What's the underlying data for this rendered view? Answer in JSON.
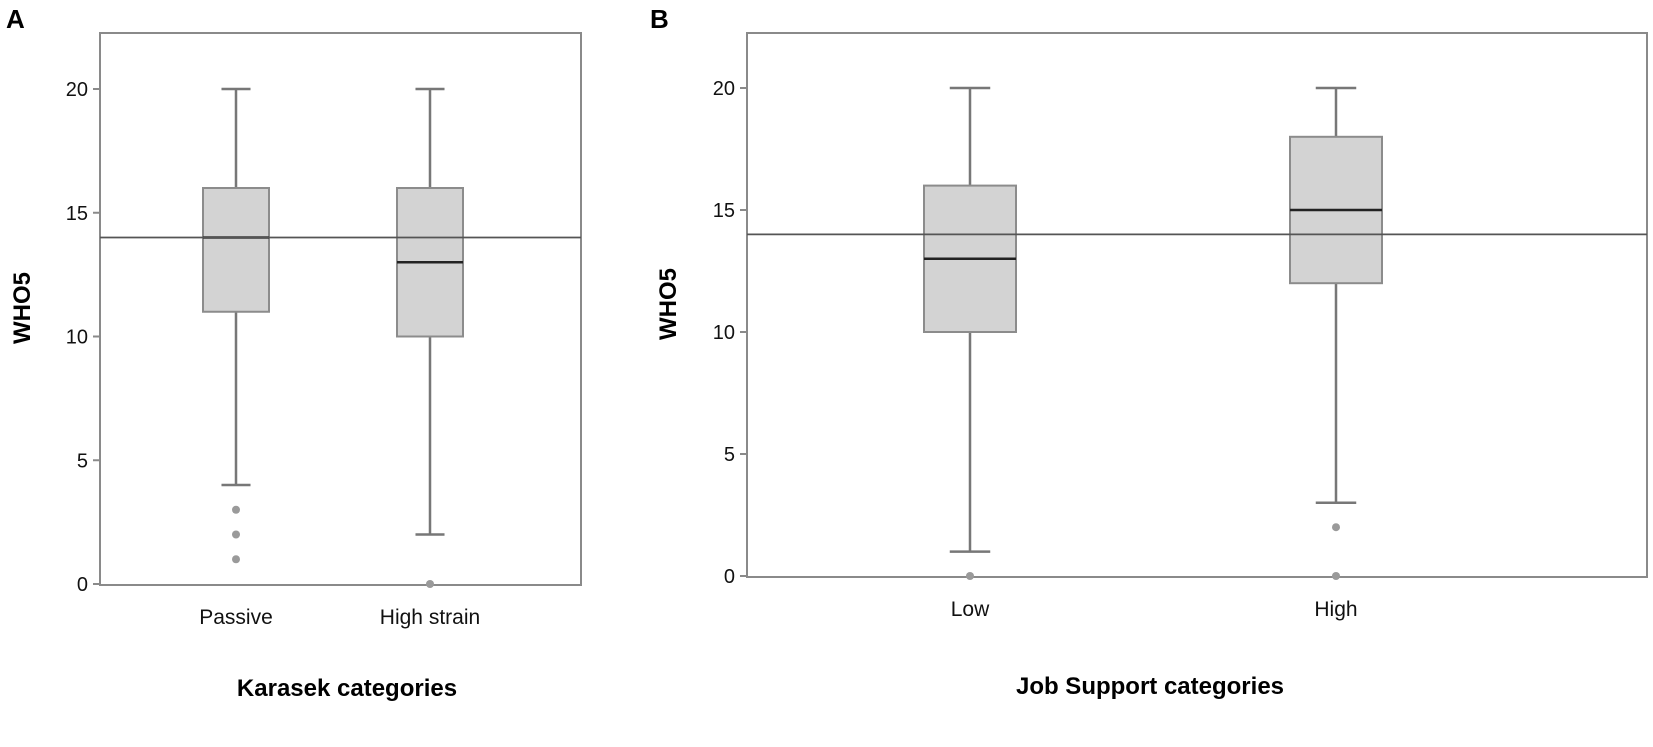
{
  "colors": {
    "box_fill": "#d3d3d3",
    "box_stroke": "#8c8c8c",
    "whisker": "#777777",
    "median": "#222222",
    "reference_line": "#555555",
    "outlier": "#9a9a9a",
    "frame": "#8a8a8a"
  },
  "chart_data": [
    {
      "type": "box",
      "panel": "A",
      "xlabel": "Karasek categories",
      "ylabel": "WHO5",
      "ylim": [
        0,
        22.2
      ],
      "yticks": [
        0,
        5,
        10,
        15,
        20
      ],
      "reference_line": 14,
      "grid": false,
      "categories": [
        "Passive",
        "High strain"
      ],
      "boxes": [
        {
          "category": "Passive",
          "min": 4,
          "q1": 11,
          "median": 14,
          "q3": 16,
          "max": 20,
          "outliers": [
            3,
            2,
            1
          ]
        },
        {
          "category": "High strain",
          "min": 2,
          "q1": 10,
          "median": 13,
          "q3": 16,
          "max": 20,
          "outliers": [
            0
          ]
        }
      ]
    },
    {
      "type": "box",
      "panel": "B",
      "xlabel": "Job Support categories",
      "ylabel": "WHO5",
      "ylim": [
        0,
        22.2
      ],
      "yticks": [
        0,
        5,
        10,
        15,
        20
      ],
      "reference_line": 14,
      "grid": false,
      "categories": [
        "Low",
        "High"
      ],
      "boxes": [
        {
          "category": "Low",
          "min": 1,
          "q1": 10,
          "median": 13,
          "q3": 16,
          "max": 20,
          "outliers": [
            0
          ]
        },
        {
          "category": "High",
          "min": 3,
          "q1": 12,
          "median": 15,
          "q3": 18,
          "max": 20,
          "outliers": [
            2,
            0
          ]
        }
      ]
    }
  ]
}
